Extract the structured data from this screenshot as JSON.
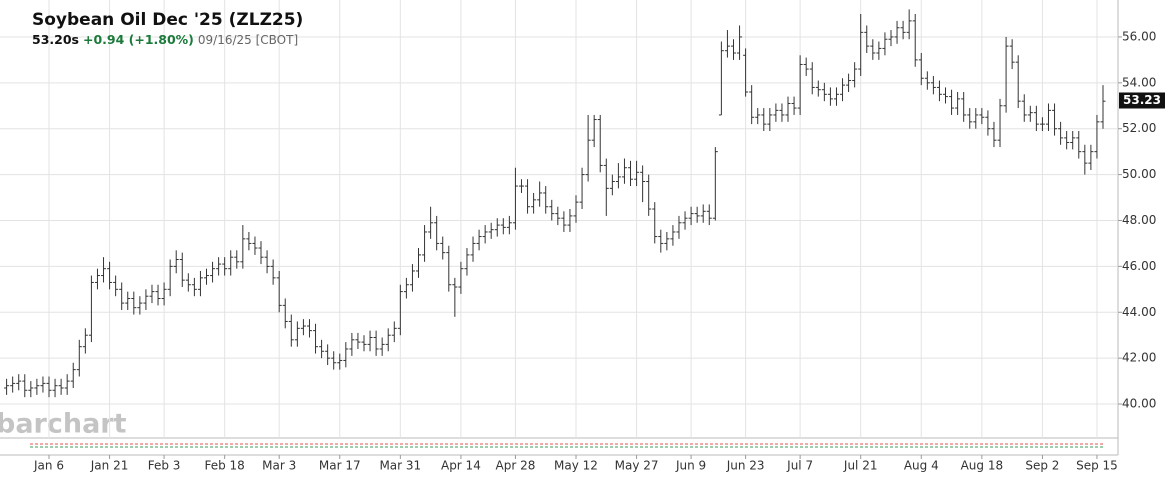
{
  "chart_data": {
    "type": "ohlc",
    "title": "Soybean Oil Dec '25 (ZLZ25)",
    "price_label": "53.20s",
    "change": "+0.94 (+1.80%)",
    "timestamp": "09/16/25 [CBOT]",
    "watermark": "barchart",
    "color": "#333333",
    "grid": true,
    "ylim": [
      38.52,
      57.61
    ],
    "yticks": [
      {
        "value": 40,
        "label": "40.00"
      },
      {
        "value": 42,
        "label": "42.00"
      },
      {
        "value": 44,
        "label": "44.00"
      },
      {
        "value": 46,
        "label": "46.00"
      },
      {
        "value": 48,
        "label": "48.00"
      },
      {
        "value": 50,
        "label": "50.00"
      },
      {
        "value": 52,
        "label": "52.00"
      },
      {
        "value": 54,
        "label": "54.00"
      },
      {
        "value": 56,
        "label": "56.00"
      }
    ],
    "last_price": {
      "value": 53.23,
      "label": "53.23"
    },
    "categories": [
      null,
      null,
      null,
      null,
      null,
      null,
      null,
      "Jan 6",
      null,
      null,
      null,
      null,
      null,
      null,
      null,
      null,
      null,
      "Jan 21",
      null,
      null,
      null,
      null,
      null,
      null,
      null,
      null,
      "Feb 3",
      null,
      null,
      null,
      null,
      null,
      null,
      null,
      null,
      null,
      "Feb 18",
      null,
      null,
      null,
      null,
      null,
      null,
      null,
      null,
      "Mar 3",
      null,
      null,
      null,
      null,
      null,
      null,
      null,
      null,
      null,
      "Mar 17",
      null,
      null,
      null,
      null,
      null,
      null,
      null,
      null,
      null,
      "Mar 31",
      null,
      null,
      null,
      null,
      null,
      null,
      null,
      null,
      null,
      "Apr 14",
      null,
      null,
      null,
      null,
      null,
      null,
      null,
      null,
      "Apr 28",
      null,
      null,
      null,
      null,
      null,
      null,
      null,
      null,
      null,
      "May 12",
      null,
      null,
      null,
      null,
      null,
      null,
      null,
      null,
      null,
      "May 27",
      null,
      null,
      null,
      null,
      null,
      null,
      null,
      null,
      "Jun 9",
      null,
      null,
      null,
      null,
      null,
      null,
      null,
      null,
      "Jun 23",
      null,
      null,
      null,
      null,
      null,
      null,
      null,
      null,
      "Jul 7",
      null,
      null,
      null,
      null,
      null,
      null,
      null,
      null,
      null,
      "Jul 21",
      null,
      null,
      null,
      null,
      null,
      null,
      null,
      null,
      null,
      "Aug 4",
      null,
      null,
      null,
      null,
      null,
      null,
      null,
      null,
      null,
      "Aug 18",
      null,
      null,
      null,
      null,
      null,
      null,
      null,
      null,
      null,
      "Sep 2",
      null,
      null,
      null,
      null,
      null,
      null,
      null,
      null,
      "Sep 15",
      null
    ],
    "open": [
      40.7,
      40.8,
      40.9,
      41.0,
      40.6,
      40.7,
      40.8,
      40.9,
      40.6,
      40.8,
      40.7,
      41.0,
      41.5,
      42.5,
      43.0,
      45.3,
      45.6,
      45.9,
      45.3,
      45.0,
      44.4,
      44.6,
      44.2,
      44.4,
      44.7,
      44.9,
      44.6,
      45.0,
      46.0,
      46.3,
      45.4,
      45.2,
      45.0,
      45.5,
      45.6,
      45.9,
      46.1,
      45.9,
      46.4,
      46.2,
      47.2,
      47.0,
      46.8,
      46.4,
      46.0,
      45.5,
      44.3,
      43.6,
      42.8,
      43.3,
      43.4,
      43.2,
      42.5,
      42.3,
      42.0,
      41.8,
      41.9,
      42.4,
      42.8,
      42.7,
      42.6,
      42.9,
      42.4,
      42.6,
      43.0,
      43.3,
      44.9,
      45.2,
      45.8,
      46.5,
      47.5,
      47.9,
      47.0,
      46.6,
      45.2,
      45.1,
      45.9,
      46.5,
      47.0,
      47.3,
      47.5,
      47.6,
      47.8,
      47.7,
      47.9,
      49.5,
      49.5,
      48.6,
      48.9,
      49.2,
      48.6,
      48.3,
      48.1,
      47.8,
      48.2,
      48.8,
      50.0,
      51.5,
      52.4,
      50.4,
      49.4,
      49.7,
      49.9,
      50.3,
      49.8,
      50.1,
      49.7,
      48.5,
      47.3,
      47.0,
      47.2,
      47.5,
      47.9,
      48.1,
      48.3,
      48.2,
      48.4,
      48.1,
      52.6,
      55.4,
      55.6,
      55.3,
      55.2,
      53.6,
      52.5,
      52.6,
      52.2,
      52.6,
      52.8,
      52.6,
      53.1,
      52.9,
      54.8,
      54.6,
      53.8,
      53.7,
      53.5,
      53.3,
      53.5,
      53.9,
      54.1,
      54.6,
      56.2,
      55.6,
      55.3,
      55.5,
      55.9,
      56.0,
      56.4,
      56.2,
      56.7,
      55.0,
      54.2,
      54.0,
      53.8,
      53.5,
      53.4,
      52.9,
      53.3,
      52.6,
      52.3,
      52.6,
      52.5,
      52.0,
      51.5,
      53.0,
      55.6,
      54.9,
      53.2,
      52.6,
      52.7,
      52.2,
      52.2,
      52.8,
      52.0,
      51.6,
      51.4,
      51.6,
      51.0,
      50.5,
      51.0,
      52.3
    ],
    "high": [
      41.1,
      41.2,
      41.3,
      41.3,
      41.0,
      41.1,
      41.2,
      41.2,
      41.1,
      41.1,
      41.3,
      41.8,
      42.8,
      43.3,
      45.6,
      45.9,
      46.4,
      46.2,
      45.6,
      45.3,
      44.9,
      44.9,
      44.7,
      45.0,
      45.2,
      45.2,
      45.3,
      46.3,
      46.7,
      46.6,
      45.7,
      45.5,
      45.8,
      45.9,
      46.2,
      46.4,
      46.4,
      46.7,
      46.7,
      47.8,
      47.5,
      47.3,
      47.1,
      46.7,
      46.3,
      45.8,
      44.6,
      43.9,
      43.6,
      43.7,
      43.7,
      43.5,
      42.8,
      42.6,
      42.3,
      42.2,
      42.7,
      43.1,
      43.1,
      43.0,
      43.2,
      43.2,
      42.9,
      43.3,
      43.6,
      45.2,
      45.5,
      46.1,
      46.8,
      47.8,
      48.6,
      48.2,
      47.3,
      46.9,
      45.5,
      46.2,
      46.8,
      47.3,
      47.6,
      47.8,
      47.9,
      48.1,
      48.1,
      48.2,
      50.3,
      49.8,
      49.8,
      49.2,
      49.7,
      49.5,
      48.9,
      48.6,
      48.4,
      48.5,
      49.1,
      50.3,
      52.6,
      52.6,
      52.6,
      50.7,
      50.0,
      50.5,
      50.7,
      50.6,
      50.6,
      50.4,
      50.0,
      48.8,
      47.6,
      47.5,
      47.8,
      48.2,
      48.4,
      48.6,
      48.6,
      48.7,
      48.7,
      51.2,
      55.8,
      56.3,
      55.9,
      56.5,
      55.5,
      53.9,
      52.9,
      52.9,
      52.9,
      53.1,
      53.1,
      53.4,
      53.4,
      55.2,
      55.1,
      54.9,
      54.1,
      54.0,
      53.8,
      53.8,
      54.2,
      54.4,
      54.9,
      57.0,
      56.5,
      55.9,
      55.8,
      56.2,
      56.3,
      56.7,
      56.7,
      57.2,
      57.0,
      55.3,
      54.5,
      54.3,
      54.1,
      53.8,
      53.7,
      53.6,
      53.6,
      52.9,
      52.9,
      52.9,
      52.8,
      52.3,
      53.3,
      56.0,
      55.9,
      55.2,
      53.5,
      53.0,
      53.0,
      52.5,
      53.1,
      53.1,
      52.3,
      51.9,
      51.9,
      51.9,
      51.3,
      51.3,
      52.6,
      53.9
    ],
    "low": [
      40.4,
      40.5,
      40.6,
      40.3,
      40.3,
      40.4,
      40.5,
      40.3,
      40.3,
      40.4,
      40.4,
      40.7,
      41.2,
      42.2,
      42.7,
      45.0,
      45.3,
      45.0,
      44.7,
      44.1,
      44.1,
      43.9,
      43.9,
      44.1,
      44.4,
      44.3,
      44.3,
      44.7,
      45.7,
      45.1,
      44.9,
      44.7,
      44.7,
      45.2,
      45.3,
      45.6,
      45.6,
      45.6,
      45.9,
      45.9,
      46.7,
      46.5,
      46.1,
      45.7,
      45.2,
      44.0,
      43.3,
      42.5,
      42.5,
      43.0,
      42.9,
      42.2,
      42.0,
      41.7,
      41.5,
      41.5,
      41.6,
      42.1,
      42.4,
      42.3,
      42.3,
      42.1,
      42.1,
      42.3,
      42.7,
      43.0,
      44.6,
      44.9,
      45.5,
      46.2,
      47.2,
      46.7,
      46.3,
      44.9,
      43.8,
      44.8,
      45.6,
      46.2,
      46.7,
      47.0,
      47.2,
      47.3,
      47.4,
      47.4,
      47.6,
      49.2,
      48.3,
      48.3,
      48.6,
      48.3,
      48.0,
      47.8,
      47.5,
      47.5,
      47.9,
      48.5,
      49.7,
      51.2,
      50.1,
      48.2,
      49.1,
      49.4,
      49.6,
      49.5,
      49.5,
      48.8,
      48.2,
      47.0,
      46.6,
      46.7,
      46.9,
      47.2,
      47.6,
      47.8,
      47.9,
      47.9,
      47.8,
      48.0,
      52.6,
      55.1,
      55.0,
      55.0,
      53.4,
      52.2,
      52.2,
      51.9,
      51.9,
      52.3,
      52.3,
      52.3,
      52.6,
      52.6,
      54.3,
      53.5,
      53.4,
      53.2,
      53.0,
      53.0,
      53.2,
      53.6,
      53.8,
      54.3,
      55.3,
      55.0,
      55.0,
      55.2,
      55.6,
      55.7,
      55.9,
      55.9,
      54.7,
      53.9,
      53.7,
      53.5,
      53.2,
      53.1,
      52.6,
      52.6,
      52.3,
      52.0,
      52.0,
      52.2,
      51.7,
      51.2,
      51.2,
      52.7,
      54.6,
      52.9,
      52.3,
      52.3,
      51.9,
      51.9,
      51.9,
      51.7,
      51.3,
      51.1,
      51.1,
      50.7,
      50.0,
      50.2,
      50.7,
      52.0
    ],
    "close": [
      40.8,
      40.9,
      41.0,
      40.6,
      40.7,
      40.8,
      40.9,
      40.6,
      40.8,
      40.7,
      41.0,
      41.5,
      42.5,
      43.0,
      45.3,
      45.6,
      45.9,
      45.3,
      45.0,
      44.4,
      44.6,
      44.2,
      44.4,
      44.7,
      44.9,
      44.6,
      45.0,
      46.0,
      46.3,
      45.4,
      45.2,
      45.0,
      45.5,
      45.6,
      45.9,
      46.1,
      45.9,
      46.4,
      46.2,
      47.2,
      47.0,
      46.8,
      46.4,
      46.0,
      45.5,
      44.3,
      43.6,
      42.8,
      43.3,
      43.4,
      43.2,
      42.5,
      42.3,
      42.0,
      41.8,
      41.9,
      42.4,
      42.8,
      42.7,
      42.6,
      42.9,
      42.4,
      42.6,
      43.0,
      43.3,
      44.9,
      45.2,
      45.8,
      46.5,
      47.5,
      47.9,
      47.0,
      46.6,
      45.2,
      45.1,
      45.9,
      46.5,
      47.0,
      47.3,
      47.5,
      47.6,
      47.8,
      47.7,
      47.9,
      49.5,
      49.5,
      48.6,
      48.9,
      49.2,
      48.6,
      48.3,
      48.1,
      47.8,
      48.2,
      48.8,
      50.0,
      51.5,
      52.4,
      50.4,
      49.4,
      49.7,
      49.9,
      50.3,
      49.8,
      50.1,
      49.7,
      48.5,
      47.3,
      47.0,
      47.2,
      47.5,
      47.9,
      48.1,
      48.3,
      48.2,
      48.4,
      48.1,
      51.0,
      55.4,
      55.6,
      55.3,
      56.0,
      53.6,
      52.5,
      52.6,
      52.2,
      52.6,
      52.8,
      52.6,
      53.1,
      52.9,
      54.8,
      54.6,
      53.8,
      53.7,
      53.5,
      53.3,
      53.5,
      53.9,
      54.1,
      54.6,
      56.2,
      55.6,
      55.3,
      55.5,
      55.9,
      56.0,
      56.4,
      56.2,
      56.7,
      55.0,
      54.2,
      54.0,
      53.8,
      53.5,
      53.4,
      52.9,
      53.3,
      52.6,
      52.3,
      52.6,
      52.5,
      52.0,
      51.5,
      53.0,
      55.6,
      54.9,
      53.2,
      52.6,
      52.7,
      52.2,
      52.2,
      52.8,
      52.0,
      51.6,
      51.4,
      51.6,
      51.0,
      50.5,
      51.0,
      52.3,
      53.2
    ]
  }
}
